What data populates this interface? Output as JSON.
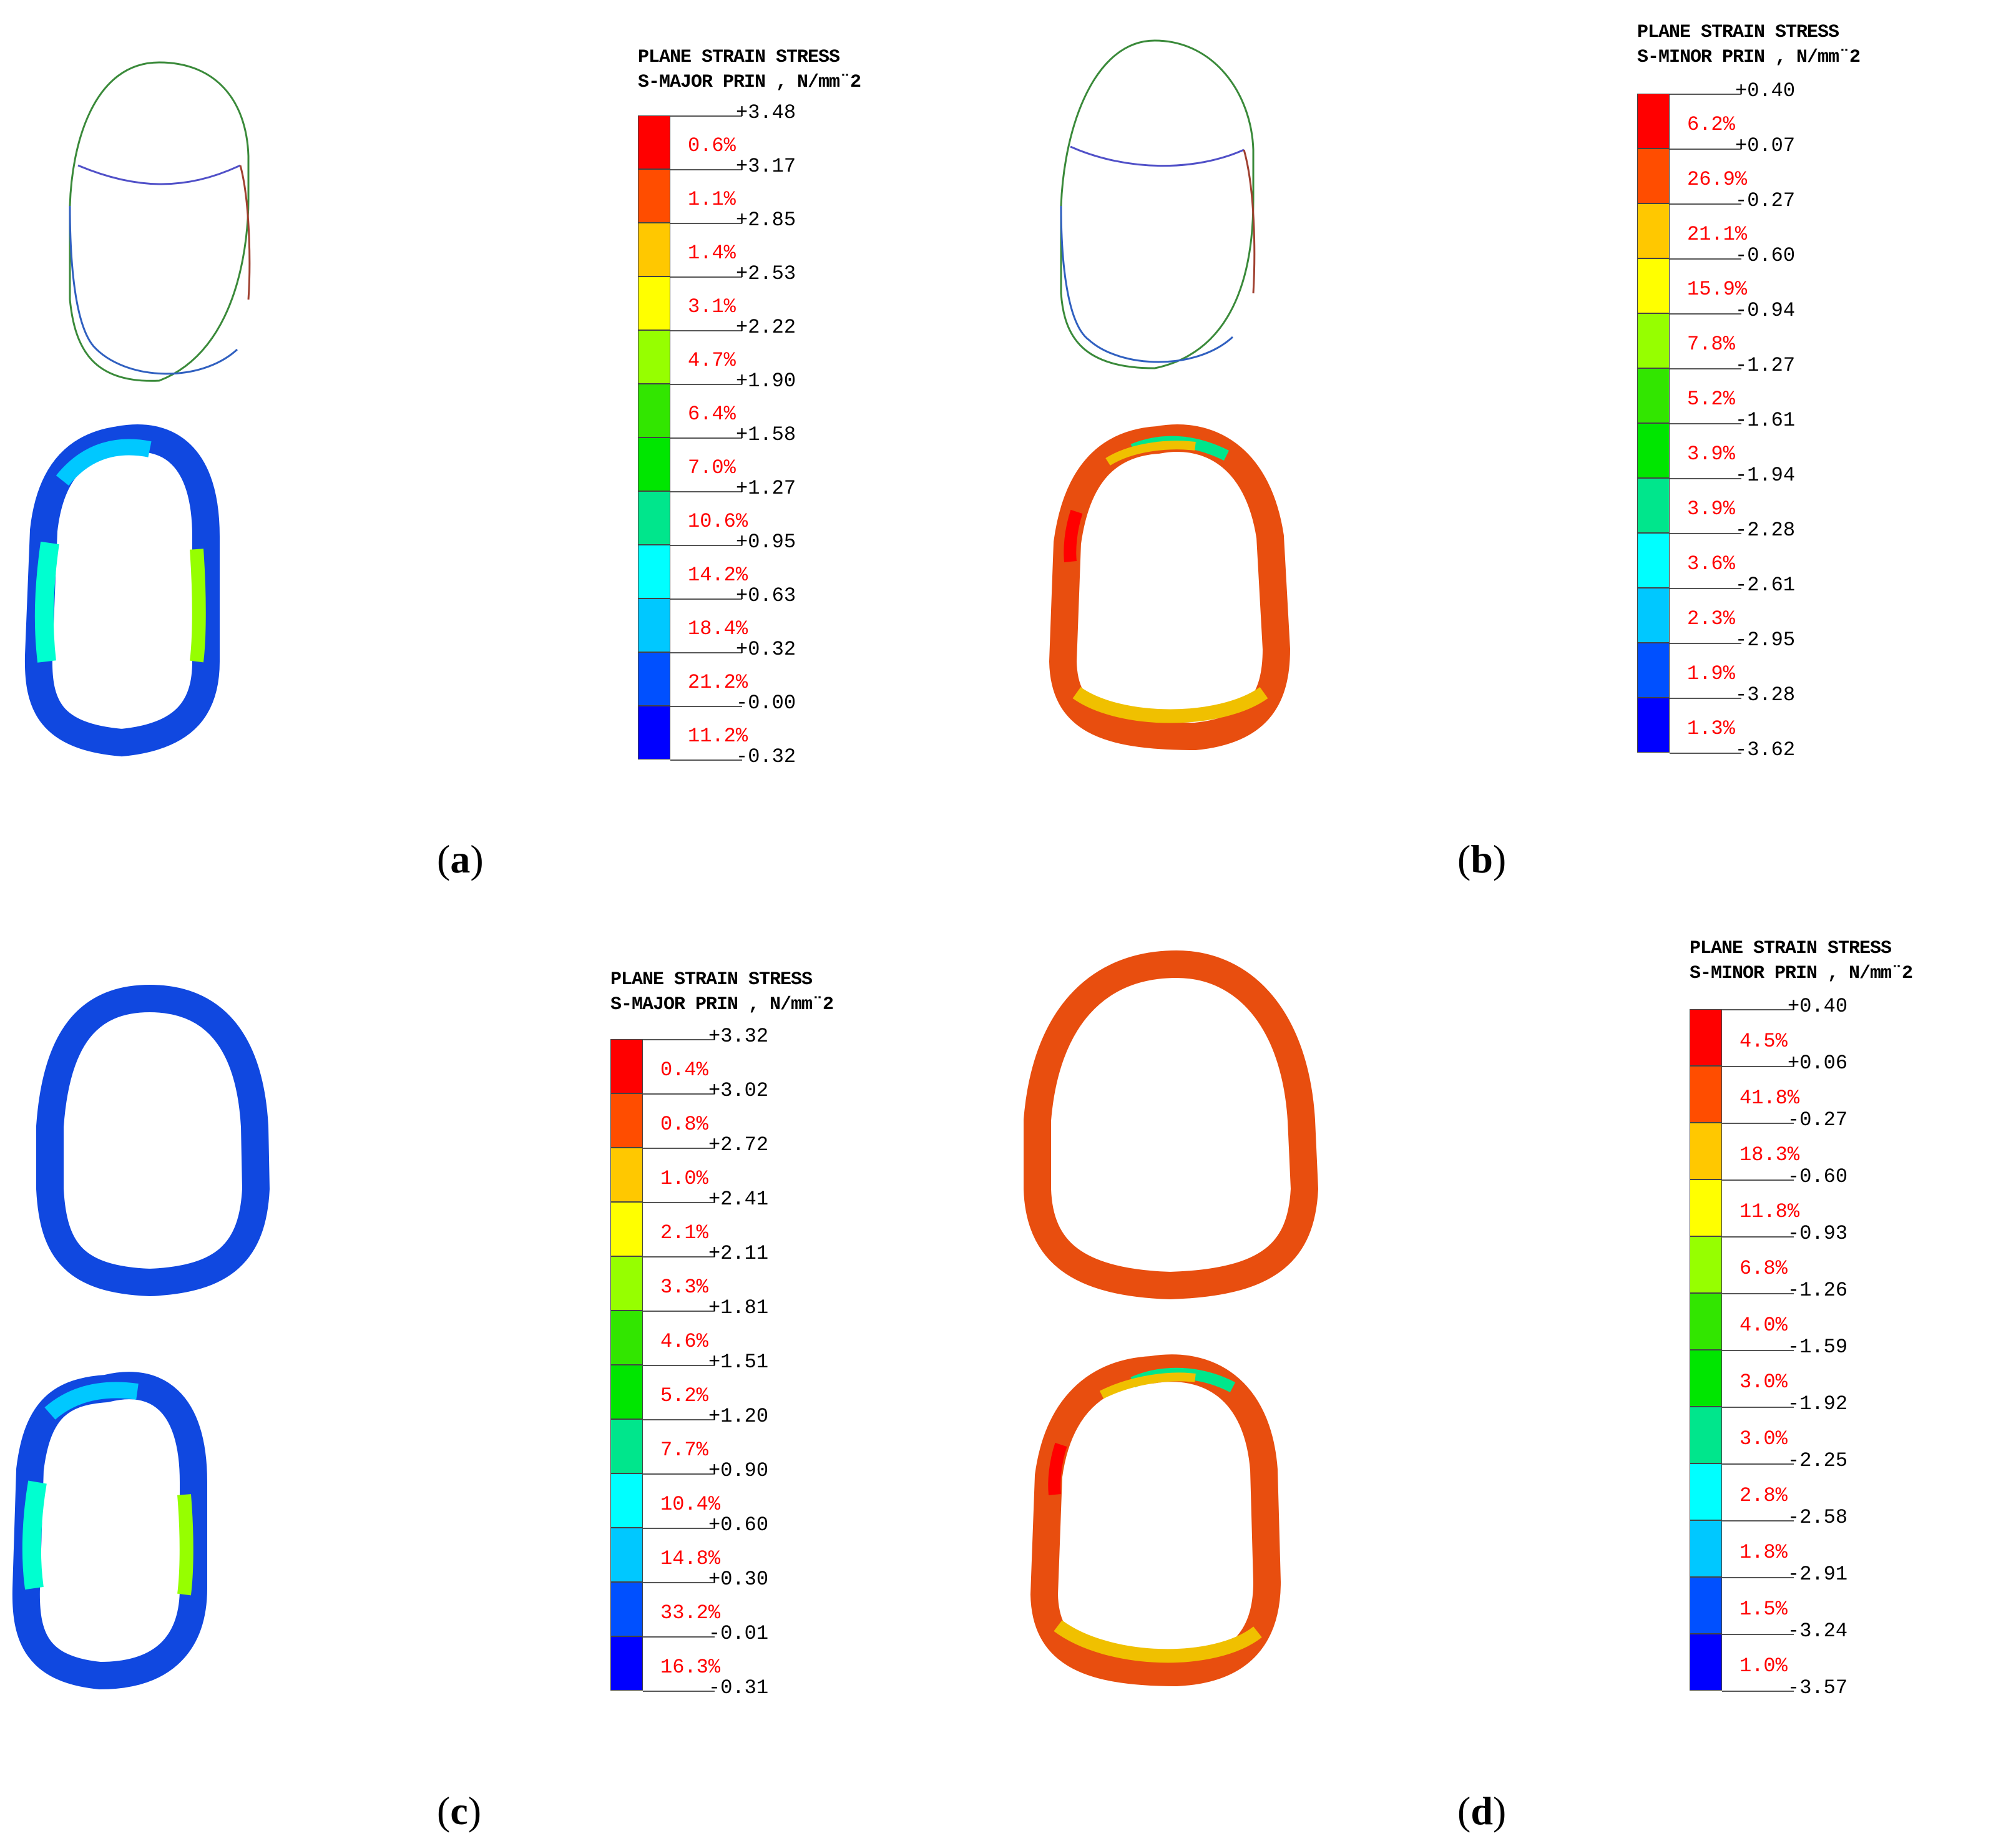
{
  "panels": [
    {
      "caption": "a",
      "legend": {
        "title_line1": "PLANE STRAIN STRESS",
        "title_line2": "S-MAJOR PRIN , N/mm¨2",
        "values": [
          "+3.48",
          "+3.17",
          "+2.85",
          "+2.53",
          "+2.22",
          "+1.90",
          "+1.58",
          "+1.27",
          "+0.95",
          "+0.63",
          "+0.32",
          "-0.00",
          "-0.32"
        ],
        "percents": [
          "0.6%",
          "1.1%",
          "1.4%",
          "3.1%",
          "4.7%",
          "6.4%",
          "7.0%",
          "10.6%",
          "14.2%",
          "18.4%",
          "21.2%",
          "11.2%"
        ]
      }
    },
    {
      "caption": "b",
      "legend": {
        "title_line1": "PLANE STRAIN STRESS",
        "title_line2": "S-MINOR PRIN , N/mm¨2",
        "values": [
          "+0.40",
          "+0.07",
          "-0.27",
          "-0.60",
          "-0.94",
          "-1.27",
          "-1.61",
          "-1.94",
          "-2.28",
          "-2.61",
          "-2.95",
          "-3.28",
          "-3.62"
        ],
        "percents": [
          "6.2%",
          "26.9%",
          "21.1%",
          "15.9%",
          "7.8%",
          "5.2%",
          "3.9%",
          "3.9%",
          "3.6%",
          "2.3%",
          "1.9%",
          "1.3%"
        ]
      }
    },
    {
      "caption": "c",
      "legend": {
        "title_line1": "PLANE STRAIN STRESS",
        "title_line2": "S-MAJOR PRIN , N/mm¨2",
        "values": [
          "+3.32",
          "+3.02",
          "+2.72",
          "+2.41",
          "+2.11",
          "+1.81",
          "+1.51",
          "+1.20",
          "+0.90",
          "+0.60",
          "+0.30",
          "-0.01",
          "-0.31"
        ],
        "percents": [
          "0.4%",
          "0.8%",
          "1.0%",
          "2.1%",
          "3.3%",
          "4.6%",
          "5.2%",
          "7.7%",
          "10.4%",
          "14.8%",
          "33.2%",
          "16.3%"
        ]
      }
    },
    {
      "caption": "d",
      "legend": {
        "title_line1": "PLANE STRAIN STRESS",
        "title_line2": "S-MINOR PRIN , N/mm¨2",
        "values": [
          "+0.40",
          "+0.06",
          "-0.27",
          "-0.60",
          "-0.93",
          "-1.26",
          "-1.59",
          "-1.92",
          "-2.25",
          "-2.58",
          "-2.91",
          "-3.24",
          "-3.57"
        ],
        "percents": [
          "4.5%",
          "41.8%",
          "18.3%",
          "11.8%",
          "6.8%",
          "4.0%",
          "3.0%",
          "3.0%",
          "2.8%",
          "1.8%",
          "1.5%",
          "1.0%"
        ]
      }
    }
  ],
  "colors": {
    "band_colors": [
      "#ff0000",
      "#ff4d00",
      "#ffc800",
      "#ffff00",
      "#96ff00",
      "#32e600",
      "#00e600",
      "#00e68c",
      "#00ffff",
      "#00c8ff",
      "#0050ff",
      "#0000ff"
    ],
    "lining_blue": "#1040e0",
    "lining_orange": "#e84e0f",
    "lining_yellow": "#f0c000"
  }
}
